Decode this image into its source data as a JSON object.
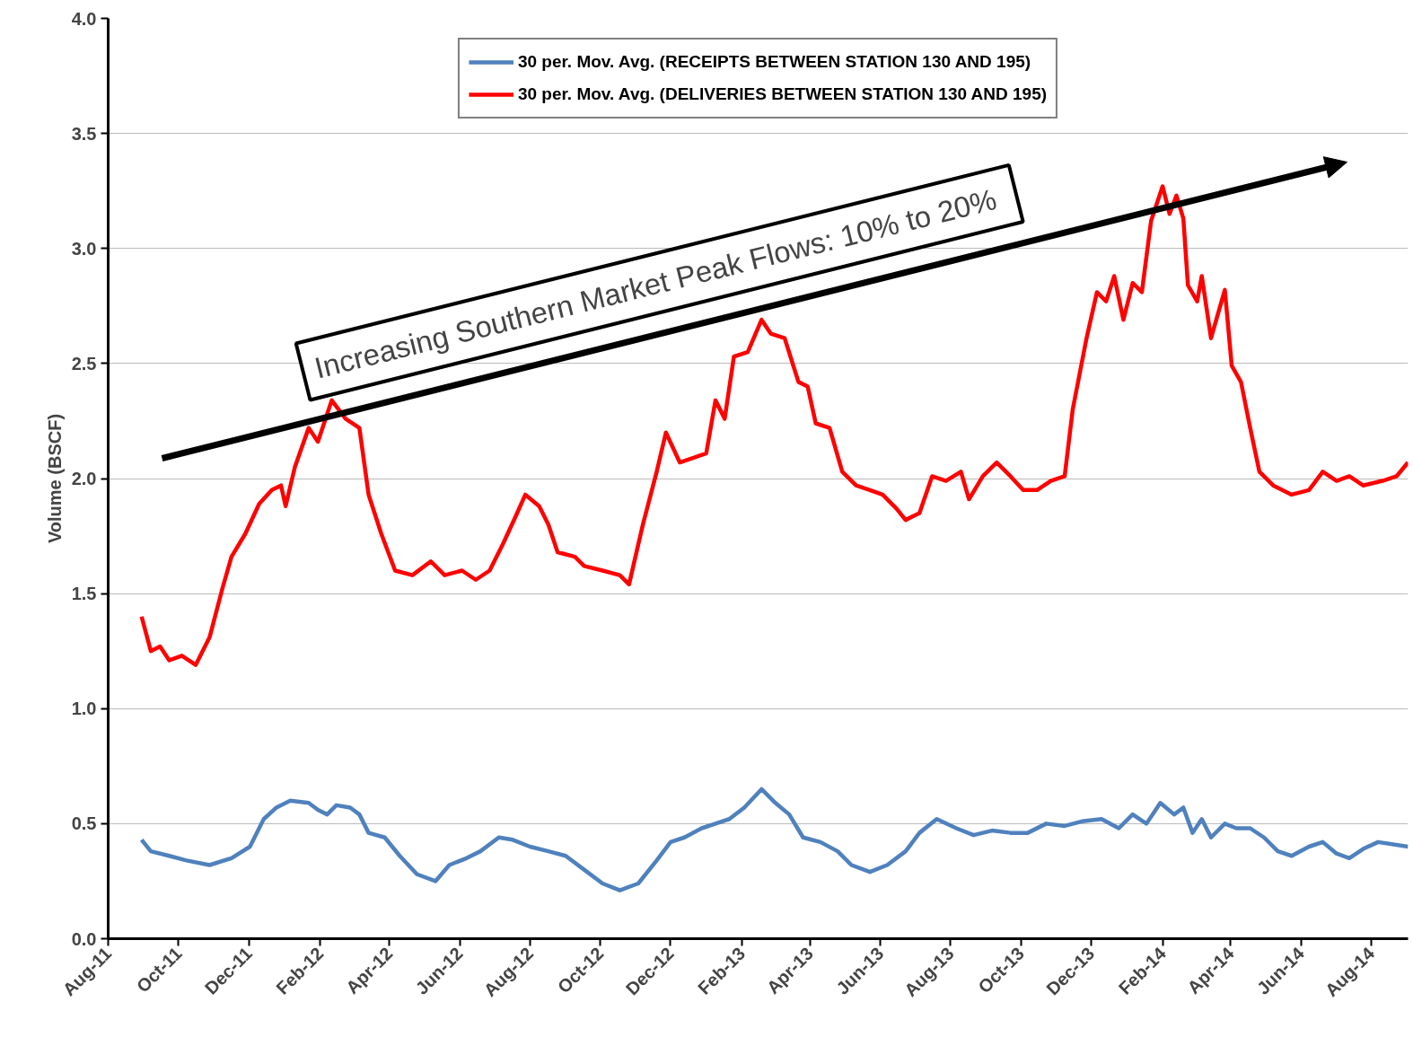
{
  "chart_data": {
    "type": "line",
    "ylabel": "Volume (BSCF)",
    "xlim": [
      "2011-08-01",
      "2014-09-02"
    ],
    "ylim": [
      0,
      4
    ],
    "xticks": [
      {
        "value": "2011-08",
        "label": "Aug-11"
      },
      {
        "value": "2011-10",
        "label": "Oct-11"
      },
      {
        "value": "2011-12",
        "label": "Dec-11"
      },
      {
        "value": "2012-02",
        "label": "Feb-12"
      },
      {
        "value": "2012-04",
        "label": "Apr-12"
      },
      {
        "value": "2012-06",
        "label": "Jun-12"
      },
      {
        "value": "2012-08",
        "label": "Aug-12"
      },
      {
        "value": "2012-10",
        "label": "Oct-12"
      },
      {
        "value": "2012-12",
        "label": "Dec-12"
      },
      {
        "value": "2013-02",
        "label": "Feb-13"
      },
      {
        "value": "2013-04",
        "label": "Apr-13"
      },
      {
        "value": "2013-06",
        "label": "Jun-13"
      },
      {
        "value": "2013-08",
        "label": "Aug-13"
      },
      {
        "value": "2013-10",
        "label": "Oct-13"
      },
      {
        "value": "2013-12",
        "label": "Dec-13"
      },
      {
        "value": "2014-02",
        "label": "Feb-14"
      },
      {
        "value": "2014-04",
        "label": "Apr-14"
      },
      {
        "value": "2014-06",
        "label": "Jun-14"
      },
      {
        "value": "2014-08",
        "label": "Aug-14"
      }
    ],
    "yticks": [
      {
        "value": 0,
        "label": "0.0"
      },
      {
        "value": 0.5,
        "label": "0.5"
      },
      {
        "value": 1,
        "label": "1.0"
      },
      {
        "value": 1.5,
        "label": "1.5"
      },
      {
        "value": 2,
        "label": "2.0"
      },
      {
        "value": 2.5,
        "label": "2.5"
      },
      {
        "value": 3,
        "label": "3.0"
      },
      {
        "value": 3.5,
        "label": "3.5"
      },
      {
        "value": 4,
        "label": "4.0"
      }
    ],
    "grid": "y",
    "legend": "top",
    "marker": "none",
    "line_style": "solid",
    "annotations": [
      "Increasing Southern Market Peak Flows:  10% to 20%"
    ],
    "series": [
      {
        "name": "30 per. Mov. Avg. (RECEIPTS BETWEEN STATION 130 AND 195)",
        "color": "#4f81bd",
        "x": [
          "2011-08-30",
          "2011-09-07",
          "2011-09-23",
          "2011-10-08",
          "2011-10-28",
          "2011-11-16",
          "2011-12-02",
          "2011-12-14",
          "2011-12-25",
          "2012-01-06",
          "2012-01-22",
          "2012-01-30",
          "2012-02-07",
          "2012-02-15",
          "2012-02-27",
          "2012-03-06",
          "2012-03-14",
          "2012-03-28",
          "2012-04-10",
          "2012-04-25",
          "2012-05-11",
          "2012-05-23",
          "2012-06-07",
          "2012-06-19",
          "2012-07-05",
          "2012-07-17",
          "2012-08-01",
          "2012-08-17",
          "2012-09-01",
          "2012-09-17",
          "2012-10-03",
          "2012-10-18",
          "2012-11-03",
          "2012-11-19",
          "2012-12-01",
          "2012-12-13",
          "2012-12-28",
          "2013-01-09",
          "2013-01-21",
          "2013-02-03",
          "2013-02-18",
          "2013-03-02",
          "2013-03-14",
          "2013-03-26",
          "2013-04-10",
          "2013-04-25",
          "2013-05-07",
          "2013-05-23",
          "2013-06-07",
          "2013-06-23",
          "2013-07-05",
          "2013-07-20",
          "2013-08-06",
          "2013-08-21",
          "2013-09-06",
          "2013-09-22",
          "2013-10-07",
          "2013-10-23",
          "2013-11-08",
          "2013-11-23",
          "2013-12-10",
          "2013-12-25",
          "2014-01-06",
          "2014-01-18",
          "2014-01-30",
          "2014-02-11",
          "2014-02-19",
          "2014-02-27",
          "2014-03-07",
          "2014-03-15",
          "2014-03-27",
          "2014-04-06",
          "2014-04-18",
          "2014-04-30",
          "2014-05-12",
          "2014-05-24",
          "2014-06-08",
          "2014-06-20",
          "2014-07-02",
          "2014-07-13",
          "2014-07-25",
          "2014-08-07",
          "2014-09-02"
        ],
        "values": [
          0.43,
          0.38,
          0.36,
          0.34,
          0.32,
          0.35,
          0.4,
          0.52,
          0.57,
          0.6,
          0.59,
          0.56,
          0.54,
          0.58,
          0.57,
          0.54,
          0.46,
          0.44,
          0.36,
          0.28,
          0.25,
          0.32,
          0.35,
          0.38,
          0.44,
          0.43,
          0.4,
          0.38,
          0.36,
          0.3,
          0.24,
          0.21,
          0.24,
          0.34,
          0.42,
          0.44,
          0.48,
          0.5,
          0.52,
          0.57,
          0.65,
          0.59,
          0.54,
          0.44,
          0.42,
          0.38,
          0.32,
          0.29,
          0.32,
          0.38,
          0.46,
          0.52,
          0.48,
          0.45,
          0.47,
          0.46,
          0.46,
          0.5,
          0.49,
          0.51,
          0.52,
          0.48,
          0.54,
          0.5,
          0.59,
          0.54,
          0.57,
          0.46,
          0.52,
          0.44,
          0.5,
          0.48,
          0.48,
          0.44,
          0.38,
          0.36,
          0.4,
          0.42,
          0.37,
          0.35,
          0.39,
          0.42,
          0.4
        ]
      },
      {
        "name": "30 per. Mov. Avg. (DELIVERIES BETWEEN STATION 130 AND 195)",
        "color": "#ff0000",
        "x": [
          "2011-08-30",
          "2011-09-07",
          "2011-09-15",
          "2011-09-23",
          "2011-10-04",
          "2011-10-16",
          "2011-10-28",
          "2011-11-08",
          "2011-11-16",
          "2011-11-28",
          "2011-12-10",
          "2011-12-21",
          "2011-12-29",
          "2012-01-02",
          "2012-01-10",
          "2012-01-22",
          "2012-01-30",
          "2012-02-11",
          "2012-02-23",
          "2012-03-06",
          "2012-03-14",
          "2012-03-25",
          "2012-04-06",
          "2012-04-21",
          "2012-05-07",
          "2012-05-19",
          "2012-06-03",
          "2012-06-15",
          "2012-06-27",
          "2012-07-09",
          "2012-07-20",
          "2012-07-28",
          "2012-08-09",
          "2012-08-17",
          "2012-08-25",
          "2012-09-09",
          "2012-09-17",
          "2012-10-03",
          "2012-10-18",
          "2012-10-26",
          "2012-11-07",
          "2012-11-19",
          "2012-11-27",
          "2012-12-09",
          "2012-12-21",
          "2013-01-01",
          "2013-01-09",
          "2013-01-17",
          "2013-01-25",
          "2013-02-06",
          "2013-02-18",
          "2013-02-26",
          "2013-03-10",
          "2013-03-22",
          "2013-03-30",
          "2013-04-06",
          "2013-04-18",
          "2013-04-29",
          "2013-05-11",
          "2013-05-23",
          "2013-06-03",
          "2013-06-15",
          "2013-06-23",
          "2013-07-05",
          "2013-07-16",
          "2013-07-28",
          "2013-08-10",
          "2013-08-17",
          "2013-08-29",
          "2013-09-10",
          "2013-09-22",
          "2013-10-03",
          "2013-10-15",
          "2013-10-27",
          "2013-11-08",
          "2013-11-15",
          "2013-11-27",
          "2013-12-06",
          "2013-12-14",
          "2013-12-21",
          "2013-12-29",
          "2014-01-06",
          "2014-01-14",
          "2014-01-22",
          "2014-02-01",
          "2014-02-07",
          "2014-02-13",
          "2014-02-19",
          "2014-02-23",
          "2014-03-03",
          "2014-03-07",
          "2014-03-15",
          "2014-03-27",
          "2014-04-02",
          "2014-04-10",
          "2014-04-18",
          "2014-04-26",
          "2014-05-08",
          "2014-05-24",
          "2014-06-08",
          "2014-06-20",
          "2014-07-02",
          "2014-07-13",
          "2014-07-25",
          "2014-08-11",
          "2014-08-23",
          "2014-09-02"
        ],
        "values": [
          1.4,
          1.25,
          1.27,
          1.21,
          1.23,
          1.19,
          1.31,
          1.52,
          1.66,
          1.76,
          1.89,
          1.95,
          1.97,
          1.88,
          2.05,
          2.22,
          2.16,
          2.34,
          2.26,
          2.22,
          1.93,
          1.76,
          1.6,
          1.58,
          1.64,
          1.58,
          1.6,
          1.56,
          1.6,
          1.72,
          1.84,
          1.93,
          1.88,
          1.8,
          1.68,
          1.66,
          1.62,
          1.6,
          1.58,
          1.54,
          1.8,
          2.03,
          2.2,
          2.07,
          2.09,
          2.11,
          2.34,
          2.26,
          2.53,
          2.55,
          2.69,
          2.63,
          2.61,
          2.42,
          2.4,
          2.24,
          2.22,
          2.03,
          1.97,
          1.95,
          1.93,
          1.87,
          1.82,
          1.85,
          2.01,
          1.99,
          2.03,
          1.91,
          2.01,
          2.07,
          2.01,
          1.95,
          1.95,
          1.99,
          2.01,
          2.3,
          2.61,
          2.81,
          2.77,
          2.88,
          2.69,
          2.85,
          2.81,
          3.12,
          3.27,
          3.15,
          3.23,
          3.13,
          2.84,
          2.77,
          2.88,
          2.61,
          2.82,
          2.49,
          2.42,
          2.22,
          2.03,
          1.97,
          1.93,
          1.95,
          2.03,
          1.99,
          2.01,
          1.97,
          1.99,
          2.01,
          2.07
        ]
      }
    ]
  }
}
